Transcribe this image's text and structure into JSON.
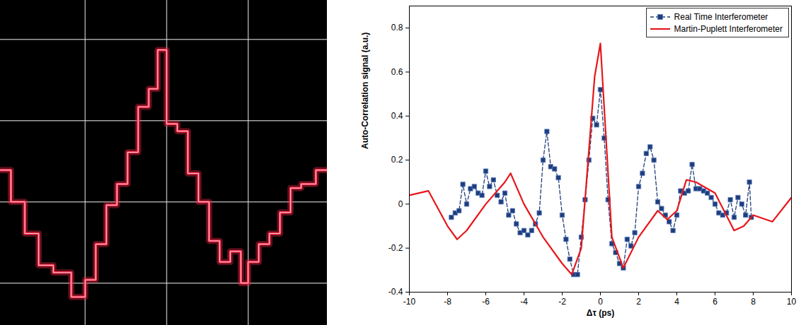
{
  "chart_data": [
    {
      "type": "line",
      "x": [
        -2.04,
        -1.91,
        -1.74,
        -1.57,
        -1.39,
        -1.17,
        -1.0,
        -0.87,
        -0.74,
        -0.61,
        -0.48,
        -0.35,
        -0.22,
        -0.11,
        0,
        0.13,
        0.26,
        0.39,
        0.52,
        0.65,
        0.78,
        0.91,
        1.0,
        1.13,
        1.26,
        1.39,
        1.52,
        1.65,
        1.83,
        1.97
      ],
      "values": [
        0.39,
        0,
        -0.39,
        -0.78,
        -0.87,
        -1.17,
        -0.96,
        -0.52,
        -0.04,
        0.22,
        0.61,
        1.17,
        1.39,
        1.87,
        0.96,
        0.87,
        0.35,
        0,
        -0.48,
        -0.74,
        -0.61,
        -1.0,
        -0.74,
        -0.52,
        -0.39,
        -0.13,
        0.17,
        0.22,
        0.39,
        0.39
      ],
      "color": "#ff2a4a",
      "line_style": "step",
      "xlim": [
        -2.04,
        1.97
      ],
      "ylim": [
        -1.52,
        2.48
      ],
      "xticks": [
        -1,
        0,
        1
      ],
      "yticks": [
        -1,
        0,
        1,
        2
      ],
      "grid": true,
      "tick_labels": false
    },
    {
      "type": "line",
      "x_label": "Δτ (ps)",
      "y_label": "Auto-Correlation signal (a.u.)",
      "series": [
        {
          "name": "Real Time Interferometer",
          "color": "#1f3d7a",
          "marker": "square",
          "line_style": "dashed",
          "x": [
            -7.8,
            -7.6,
            -7.4,
            -7.2,
            -7.0,
            -6.8,
            -6.6,
            -6.4,
            -6.2,
            -6.0,
            -5.8,
            -5.6,
            -5.4,
            -5.2,
            -5.0,
            -4.8,
            -4.6,
            -4.4,
            -4.2,
            -4.0,
            -3.8,
            -3.6,
            -3.4,
            -3.2,
            -3.0,
            -2.8,
            -2.6,
            -2.4,
            -2.2,
            -2.0,
            -1.8,
            -1.6,
            -1.4,
            -1.2,
            -1.0,
            -0.8,
            -0.6,
            -0.4,
            -0.2,
            0.0,
            0.2,
            0.4,
            0.6,
            0.8,
            1.0,
            1.2,
            1.4,
            1.6,
            1.8,
            2.0,
            2.2,
            2.4,
            2.6,
            2.8,
            3.0,
            3.2,
            3.4,
            3.6,
            3.8,
            4.0,
            4.2,
            4.4,
            4.6,
            4.8,
            5.0,
            5.2,
            5.4,
            5.6,
            5.8,
            6.0,
            6.2,
            6.4,
            6.6,
            6.8,
            7.0,
            7.2,
            7.4,
            7.6,
            7.8,
            7.9
          ],
          "values": [
            -0.06,
            -0.04,
            -0.03,
            0.09,
            0.0,
            0.07,
            0.08,
            0.05,
            0.04,
            0.15,
            0.08,
            0.11,
            0.04,
            0.01,
            0.05,
            -0.05,
            -0.03,
            -0.09,
            -0.13,
            -0.12,
            -0.14,
            -0.12,
            -0.09,
            -0.04,
            0.2,
            0.33,
            0.17,
            0.16,
            0.12,
            -0.05,
            -0.16,
            -0.25,
            -0.32,
            -0.32,
            -0.15,
            0.02,
            0.2,
            0.39,
            0.36,
            0.52,
            0.3,
            0.02,
            -0.18,
            -0.22,
            -0.27,
            -0.29,
            -0.16,
            -0.19,
            -0.13,
            0.08,
            0.14,
            0.23,
            0.26,
            0.2,
            0.01,
            -0.02,
            -0.05,
            -0.08,
            -0.12,
            -0.05,
            0.06,
            0.05,
            0.06,
            0.18,
            0.07,
            0.07,
            0.06,
            0.05,
            0.03,
            0.0,
            -0.04,
            -0.05,
            -0.04,
            0.02,
            -0.06,
            0.03,
            0.0,
            -0.05,
            0.1,
            -0.06
          ]
        },
        {
          "name": "Martin-Puplett Interferometer",
          "color": "#e8161b",
          "line_style": "solid",
          "x": [
            -10,
            -9,
            -8,
            -7.5,
            -7,
            -6,
            -5,
            -4.7,
            -4,
            -3,
            -2,
            -1.5,
            -1,
            -0.3,
            0,
            0.6,
            1.2,
            2,
            3,
            3.5,
            4,
            4.5,
            5,
            6,
            7,
            7.5,
            8,
            9,
            10
          ],
          "values": [
            0.04,
            0.06,
            -0.1,
            -0.16,
            -0.12,
            0.0,
            0.1,
            0.14,
            0.0,
            -0.15,
            -0.27,
            -0.32,
            -0.2,
            0.58,
            0.73,
            -0.15,
            -0.29,
            -0.15,
            -0.03,
            -0.07,
            -0.03,
            0.11,
            0.1,
            0.05,
            -0.12,
            -0.1,
            -0.05,
            -0.08,
            0.03
          ]
        }
      ],
      "xlim": [
        -10,
        10
      ],
      "ylim": [
        -0.4,
        0.9
      ],
      "xticks": [
        -10,
        -8,
        -6,
        -4,
        -2,
        0,
        2,
        4,
        6,
        8,
        10
      ],
      "yticks": [
        -0.4,
        -0.2,
        0,
        0.2,
        0.4,
        0.6,
        0.8
      ],
      "legend": "top-right"
    }
  ]
}
